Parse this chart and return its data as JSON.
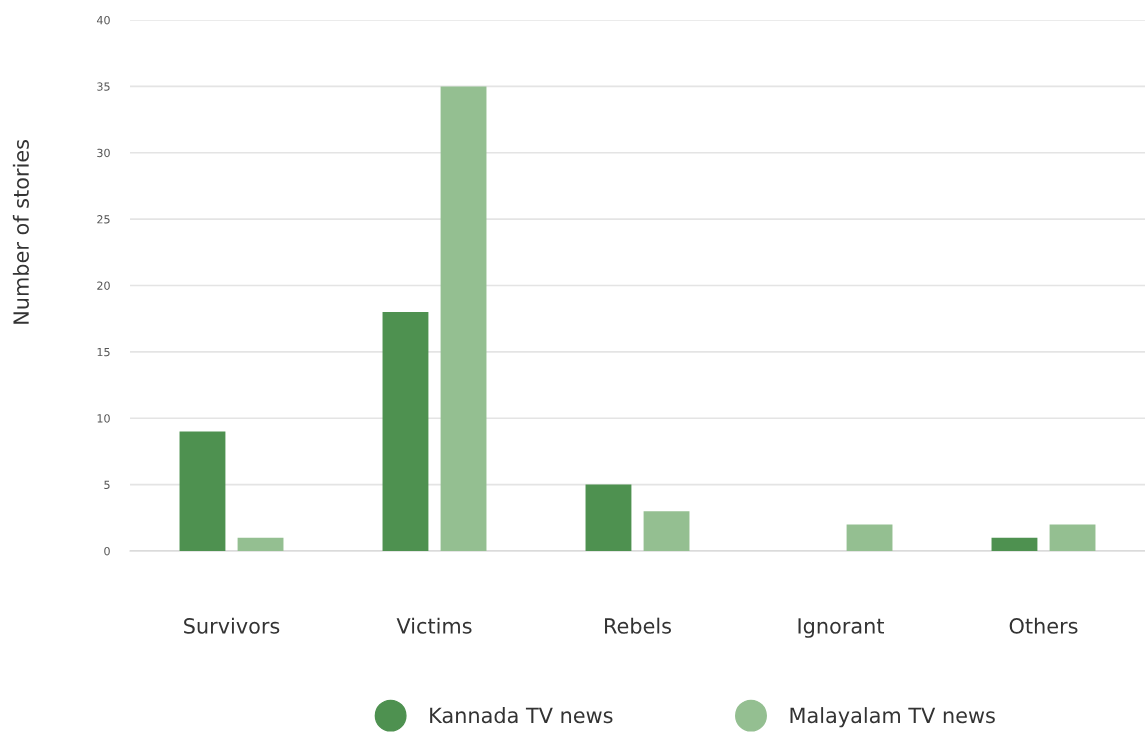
{
  "chart_data": {
    "type": "bar",
    "ylabel": "Number of stories",
    "categories": [
      "Survivors",
      "Victims",
      "Rebels",
      "Ignorant",
      "Others"
    ],
    "series": [
      {
        "name": "Kannada TV news",
        "color": "#4e9150",
        "values": [
          9,
          18,
          5,
          0,
          1
        ]
      },
      {
        "name": "Malayalam TV news",
        "color": "#94bf91",
        "values": [
          1,
          35,
          3,
          2,
          2
        ]
      }
    ],
    "ylim": [
      0,
      40
    ],
    "yticks": [
      0,
      5,
      10,
      15,
      20,
      25,
      30,
      35,
      40
    ],
    "grid": "y",
    "legend": "bottom"
  }
}
